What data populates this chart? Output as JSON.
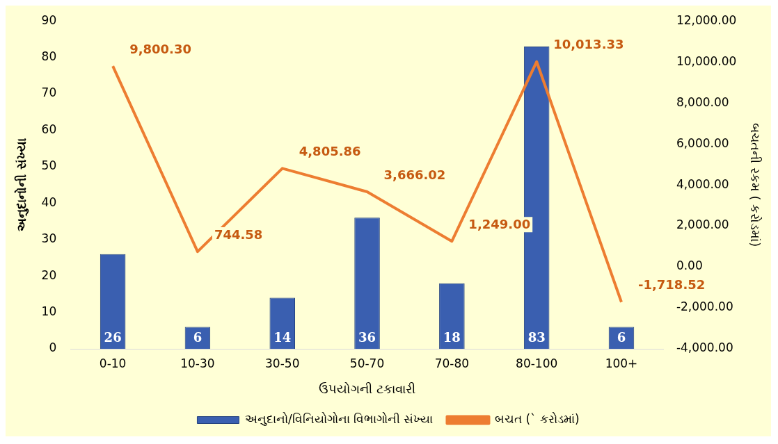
{
  "chart_data": {
    "type": "bar",
    "categories": [
      "0-10",
      "10-30",
      "30-50",
      "50-70",
      "70-80",
      "80-100",
      "100+"
    ],
    "xlabel": "ઉપયોગની ટકાવારી",
    "ylabel": "અનુદાનોની સંખ્યા",
    "y2label": "બચતની રકમ ( કરોડમાં)",
    "series": [
      {
        "name": "અનુદાનો/વિનિયોગોના વિભાગોની સંખ્યા",
        "color": "#3a5fb0",
        "values": [
          26,
          6,
          14,
          36,
          18,
          83,
          6
        ],
        "value_labels": [
          "26",
          "6",
          "14",
          "36",
          "18",
          "83",
          "6"
        ]
      },
      {
        "name": "બચત (` કરોડમાં)",
        "type": "line",
        "axis": "y2",
        "color": "#ed7d31",
        "values": [
          9800.3,
          744.58,
          4805.86,
          3666.02,
          1249.0,
          10013.33,
          -1718.52
        ],
        "value_labels": [
          "9,800.30",
          "744.58",
          "4,805.86",
          "3,666.02",
          "1,249.00",
          "10,013.33",
          "-1,718.52"
        ]
      }
    ],
    "ylim": [
      0,
      90
    ],
    "yticks": [
      0,
      10,
      20,
      30,
      40,
      50,
      60,
      70,
      80,
      90
    ],
    "y2lim": [
      -4000,
      12000
    ],
    "y2ticks": [
      {
        "value": -4000,
        "label": "-4,000.00"
      },
      {
        "value": -2000,
        "label": "-2,000.00"
      },
      {
        "value": 0,
        "label": "0.00"
      },
      {
        "value": 2000,
        "label": "2,000.00"
      },
      {
        "value": 4000,
        "label": "4,000.00"
      },
      {
        "value": 6000,
        "label": "6,000.00"
      },
      {
        "value": 8000,
        "label": "8,000.00"
      },
      {
        "value": 10000,
        "label": "10,000.00"
      },
      {
        "value": 12000,
        "label": "12,000.00"
      }
    ],
    "grid": false,
    "legend": "bottom",
    "marker": "none",
    "line_style": "solid"
  }
}
